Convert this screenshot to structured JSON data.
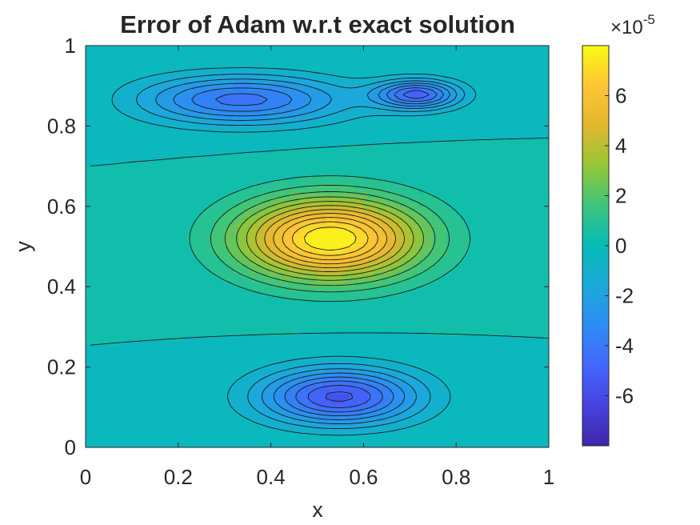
{
  "chart_data": {
    "type": "contour",
    "title": "Error of Adam w.r.t exact solution",
    "xlabel": "x",
    "ylabel": "y",
    "xlim": [
      0,
      1
    ],
    "ylim": [
      0,
      1
    ],
    "x_ticks": [
      "0",
      "0.2",
      "0.4",
      "0.6",
      "0.8",
      "1"
    ],
    "y_ticks": [
      "0",
      "0.2",
      "0.4",
      "0.6",
      "0.8",
      "1"
    ],
    "colorbar": {
      "multiplier_base": "×10",
      "multiplier_exponent": "-5",
      "range": [
        -8e-05,
        8e-05
      ],
      "ticks": [
        {
          "value": 6,
          "label": "6"
        },
        {
          "value": 4,
          "label": "4"
        },
        {
          "value": 2,
          "label": "2"
        },
        {
          "value": 0,
          "label": "0"
        },
        {
          "value": -2,
          "label": "-2"
        },
        {
          "value": -4,
          "label": "-4"
        },
        {
          "value": -6,
          "label": "-6"
        }
      ]
    },
    "colormap": "parula",
    "features": [
      {
        "kind": "minimum",
        "x": 0.55,
        "y": 0.12,
        "value": -7.8e-05
      },
      {
        "kind": "maximum",
        "x": 0.53,
        "y": 0.52,
        "value": 8e-05
      },
      {
        "kind": "minimum",
        "x": 0.72,
        "y": 0.88,
        "value": -7.6e-05
      },
      {
        "kind": "plateau",
        "x": 0.32,
        "y": 0.87,
        "value": -6.2e-05
      }
    ],
    "boundary_value": 0,
    "grid": false,
    "legend": "none"
  }
}
